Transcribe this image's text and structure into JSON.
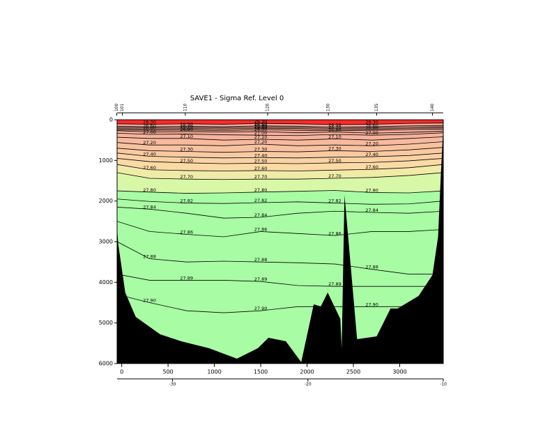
{
  "chart_data": {
    "type": "contour",
    "title": "SAVE1 - Sigma Ref. Level 0",
    "xlim": [
      -50,
      3470
    ],
    "ylim": [
      0,
      6000
    ],
    "y_inverted": true,
    "xticks": [
      0,
      500,
      1000,
      1500,
      2000,
      2500,
      3000
    ],
    "yticks": [
      0,
      1000,
      2000,
      3000,
      4000,
      5000,
      6000
    ],
    "x2lim": [
      -34.1,
      -10
    ],
    "x2ticks": [
      -30,
      -20,
      -10
    ],
    "stations": {
      "x": [
        -53,
        8,
        686,
        1575,
        2230,
        2751,
        3353
      ],
      "labels": [
        "100",
        "101",
        "110",
        "120",
        "130",
        "135",
        "140"
      ]
    },
    "surface_color": "#ff2a2a",
    "line_color": "#000000",
    "bottom_color": "#000000",
    "x": [
      -50,
      300,
      700,
      1100,
      1500,
      1900,
      2300,
      2700,
      3100,
      3470
    ],
    "contours": [
      {
        "level": {
          "value": 26.3,
          "label": "26.30"
        },
        "color": "#f4a898",
        "depth": [
          100,
          110,
          100,
          110,
          90,
          100,
          120,
          110,
          90,
          80
        ]
      },
      {
        "level": {
          "value": 26.5,
          "label": "26.50"
        },
        "color": "#f4a898",
        "depth": [
          160,
          170,
          160,
          170,
          150,
          160,
          180,
          170,
          150,
          140
        ]
      },
      {
        "level": {
          "value": 26.6,
          "label": "26.60"
        },
        "color": "#f4a898",
        "depth": [
          190,
          200,
          190,
          200,
          180,
          190,
          210,
          200,
          180,
          170
        ]
      },
      {
        "level": {
          "value": 26.7,
          "label": "26.70"
        },
        "color": "#f4a898",
        "depth": [
          220,
          230,
          220,
          230,
          210,
          220,
          240,
          230,
          210,
          200
        ]
      },
      {
        "level": {
          "value": 26.8,
          "label": "26.80"
        },
        "color": "#f4a898",
        "depth": [
          250,
          260,
          250,
          270,
          240,
          260,
          270,
          260,
          240,
          230
        ]
      },
      {
        "level": {
          "value": 26.9,
          "label": "26.90"
        },
        "color": "#f5ae9a",
        "depth": [
          270,
          300,
          290,
          300,
          290,
          320,
          300,
          330,
          310,
          280
        ]
      },
      {
        "level": {
          "value": 27.0,
          "label": "27.00"
        },
        "color": "#f6b39c",
        "depth": [
          330,
          360,
          350,
          370,
          380,
          390,
          360,
          380,
          360,
          320
        ]
      },
      {
        "level": {
          "value": 27.1,
          "label": "27.10"
        },
        "color": "#f7ba9e",
        "depth": [
          430,
          460,
          460,
          500,
          480,
          500,
          470,
          500,
          460,
          420
        ]
      },
      {
        "level": {
          "value": 27.2,
          "label": "27.20"
        },
        "color": "#f8c2a0",
        "depth": [
          560,
          620,
          620,
          640,
          600,
          640,
          620,
          640,
          600,
          540
        ]
      },
      {
        "level": {
          "value": 27.3,
          "label": "27.30"
        },
        "color": "#f9caa2",
        "depth": [
          700,
          760,
          780,
          800,
          780,
          790,
          760,
          780,
          740,
          680
        ]
      },
      {
        "level": {
          "value": 27.4,
          "label": "27.40"
        },
        "color": "#fad2a4",
        "depth": [
          820,
          900,
          920,
          940,
          930,
          940,
          920,
          910,
          880,
          820
        ]
      },
      {
        "level": {
          "value": 27.5,
          "label": "27.50"
        },
        "color": "#fbdaa6",
        "depth": [
          950,
          1030,
          1060,
          1080,
          1070,
          1080,
          1060,
          1050,
          1010,
          950
        ]
      },
      {
        "level": {
          "value": 27.6,
          "label": "27.60"
        },
        "color": "#f0eca8",
        "depth": [
          1100,
          1230,
          1250,
          1260,
          1250,
          1260,
          1240,
          1220,
          1180,
          1100
        ]
      },
      {
        "level": {
          "value": 27.7,
          "label": "27.70"
        },
        "color": "#d8f8a8",
        "depth": [
          1300,
          1440,
          1460,
          1470,
          1460,
          1460,
          1440,
          1420,
          1370,
          1300
        ]
      },
      {
        "level": {
          "value": 27.8,
          "label": "27.80"
        },
        "color": "#a8fca4",
        "depth": [
          1750,
          1780,
          1810,
          1800,
          1780,
          1760,
          1740,
          1790,
          1800,
          1750
        ]
      },
      {
        "level": 27.82,
        "color": "#a8fca4",
        "depth": [
          1950,
          2010,
          2050,
          2060,
          2040,
          2020,
          2050,
          2080,
          2070,
          2000
        ]
      },
      {
        "level": 27.84,
        "color": "#a8fca4",
        "depth": [
          2150,
          2200,
          2300,
          2420,
          2400,
          2300,
          2250,
          2280,
          2300,
          2250
        ]
      },
      {
        "level": 27.86,
        "color": "#a8fca4",
        "depth": [
          2500,
          2750,
          2820,
          2880,
          2750,
          2800,
          2850,
          2750,
          2750,
          2700
        ]
      },
      {
        "level": 27.88,
        "color": "#a8fca4",
        "depth": [
          3000,
          3420,
          3500,
          3480,
          3500,
          3520,
          3550,
          3680,
          3800,
          3800
        ]
      },
      {
        "level": 27.89,
        "color": "#a8fca4",
        "depth": [
          3800,
          3950,
          3950,
          3950,
          3980,
          4080,
          4100,
          4100,
          4100,
          4100
        ]
      },
      {
        "level": {
          "value": 27.9,
          "label": "27.90"
        },
        "color": "#a8fca4",
        "depth": [
          4300,
          4500,
          4700,
          4750,
          4700,
          4600,
          4600,
          4600,
          4600,
          4600
        ]
      }
    ],
    "bathymetry": {
      "x": [
        -53,
        -38,
        38,
        151,
        414,
        641,
        942,
        1243,
        1469,
        1583,
        1771,
        1937,
        2072,
        2148,
        2223,
        2359,
        2374,
        2404,
        2540,
        2751,
        2901,
        2977,
        3203,
        3353,
        3414,
        3444,
        3474
      ],
      "depth": [
        2537,
        3051,
        4251,
        4851,
        5280,
        5451,
        5623,
        5880,
        5623,
        5366,
        5451,
        5966,
        4543,
        4594,
        4251,
        4902,
        5623,
        1851,
        5400,
        5331,
        4645,
        4645,
        4337,
        3823,
        2880,
        1337,
        0
      ]
    }
  }
}
